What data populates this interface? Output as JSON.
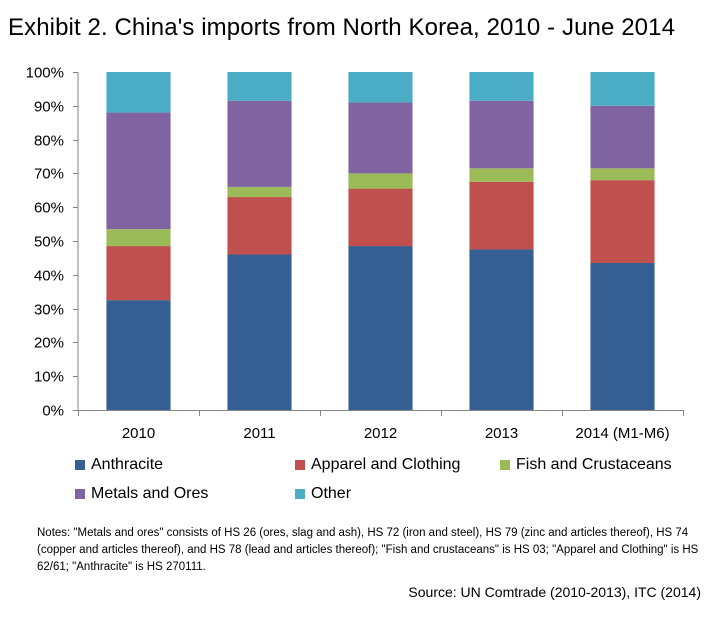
{
  "chart_data": {
    "type": "bar",
    "stacked": true,
    "title": "Exhibit 2. China's imports from North Korea, 2010 - June 2014",
    "xlabel": "",
    "ylabel": "",
    "ylim": [
      0,
      100
    ],
    "yticks": [
      "0%",
      "10%",
      "20%",
      "30%",
      "40%",
      "50%",
      "60%",
      "70%",
      "80%",
      "90%",
      "100%"
    ],
    "categories": [
      "2010",
      "2011",
      "2012",
      "2013",
      "2014 (M1-M6)"
    ],
    "series": [
      {
        "name": "Anthracite",
        "color": "#355f92",
        "values": [
          32.5,
          46,
          48.5,
          47.5,
          43.5
        ]
      },
      {
        "name": "Apparel and Clothing",
        "color": "#c0504d",
        "values": [
          16,
          17,
          17,
          20,
          24.5
        ]
      },
      {
        "name": "Fish and Crustaceans",
        "color": "#9bbb59",
        "values": [
          5,
          3,
          4.5,
          4,
          3.5
        ]
      },
      {
        "name": "Metals and Ores",
        "color": "#8064a2",
        "values": [
          34.5,
          25.5,
          21,
          20,
          18.5
        ]
      },
      {
        "name": "Other",
        "color": "#4bacc6",
        "values": [
          12,
          8.5,
          9,
          8.5,
          10
        ]
      }
    ],
    "legend_position": "bottom"
  },
  "notes": "Notes: \"Metals and  ores\" consists of HS 26 (ores, slag and ash), HS 72  (iron and steel), HS 79 (zinc and articles thereof), HS 74 (copper and articles thereof), and HS 78 (lead and articles thereof); \"Fish and crustaceans\" is HS 03;  \"Apparel and Clothing\" is HS 62/61;  \"Anthracite\" is HS 270111.",
  "source": "Source:  UN Comtrade (2010-2013), ITC (2014)"
}
